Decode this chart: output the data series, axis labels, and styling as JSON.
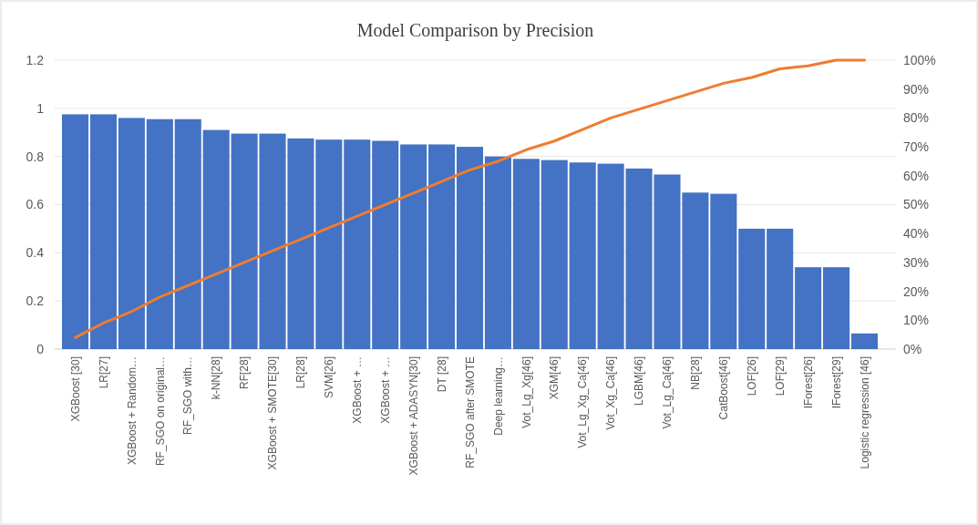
{
  "chart_data": {
    "type": "bar",
    "title": "Model Comparison by Precision",
    "categories": [
      "XGBoost [30]",
      "LR[27]",
      "XGBoost + Random…",
      "RF_SGO on original…",
      "RF_SGO with…",
      "k-NN[28]",
      "RF[28]",
      "XGBoost + SMOTE[30]",
      "LR[28]",
      "SVM[26]",
      "XGBoost + …",
      "XGBoost + …",
      "XGBoost + ADASYN[30]",
      "DT [28]",
      "RF_SGO after SMOTE",
      "Deep learning…",
      "Vot_Lg_Xg[46]",
      "XGM[46]",
      "Vot_Lg_Xg_Ca[46]",
      "Vot_Xg_Ca[46]",
      "LGBM[46]",
      "Vot_Lg_Ca[46]",
      "NB[28]",
      "CatBoost[46]",
      "LOF[26]",
      "LOF[29]",
      "IForest[26]",
      "IForest[29]",
      "Logistic regression [46]"
    ],
    "series": [
      {
        "color": "#4472c4",
        "values": [
          0.975,
          0.975,
          0.96,
          0.955,
          0.955,
          0.91,
          0.895,
          0.895,
          0.875,
          0.87,
          0.87,
          0.865,
          0.85,
          0.85,
          0.84,
          0.8,
          0.79,
          0.785,
          0.775,
          0.77,
          0.75,
          0.725,
          0.65,
          0.645,
          0.5,
          0.5,
          0.34,
          0.34,
          0.065
        ]
      },
      {
        "type": "line",
        "axis": "y2",
        "color": "#ed7d31",
        "values": [
          4,
          9,
          13,
          18,
          22,
          26,
          30,
          34,
          38,
          42,
          46,
          50,
          54,
          58,
          62,
          65,
          69,
          72,
          76,
          80,
          83,
          86,
          89,
          92,
          94,
          97,
          98,
          100,
          100
        ]
      }
    ],
    "ylim": [
      0,
      1.2
    ],
    "yticks": [
      0,
      0.2,
      0.4,
      0.6,
      0.8,
      1,
      1.2
    ],
    "y2lim": [
      0,
      100
    ],
    "y2ticks": [
      {
        "value": 0,
        "label": "0%"
      },
      {
        "value": 10,
        "label": "10%"
      },
      {
        "value": 20,
        "label": "20%"
      },
      {
        "value": 30,
        "label": "30%"
      },
      {
        "value": 40,
        "label": "40%"
      },
      {
        "value": 50,
        "label": "50%"
      },
      {
        "value": 60,
        "label": "60%"
      },
      {
        "value": 70,
        "label": "70%"
      },
      {
        "value": 80,
        "label": "80%"
      },
      {
        "value": 90,
        "label": "90%"
      },
      {
        "value": 100,
        "label": "100%"
      }
    ],
    "grid": "y"
  }
}
